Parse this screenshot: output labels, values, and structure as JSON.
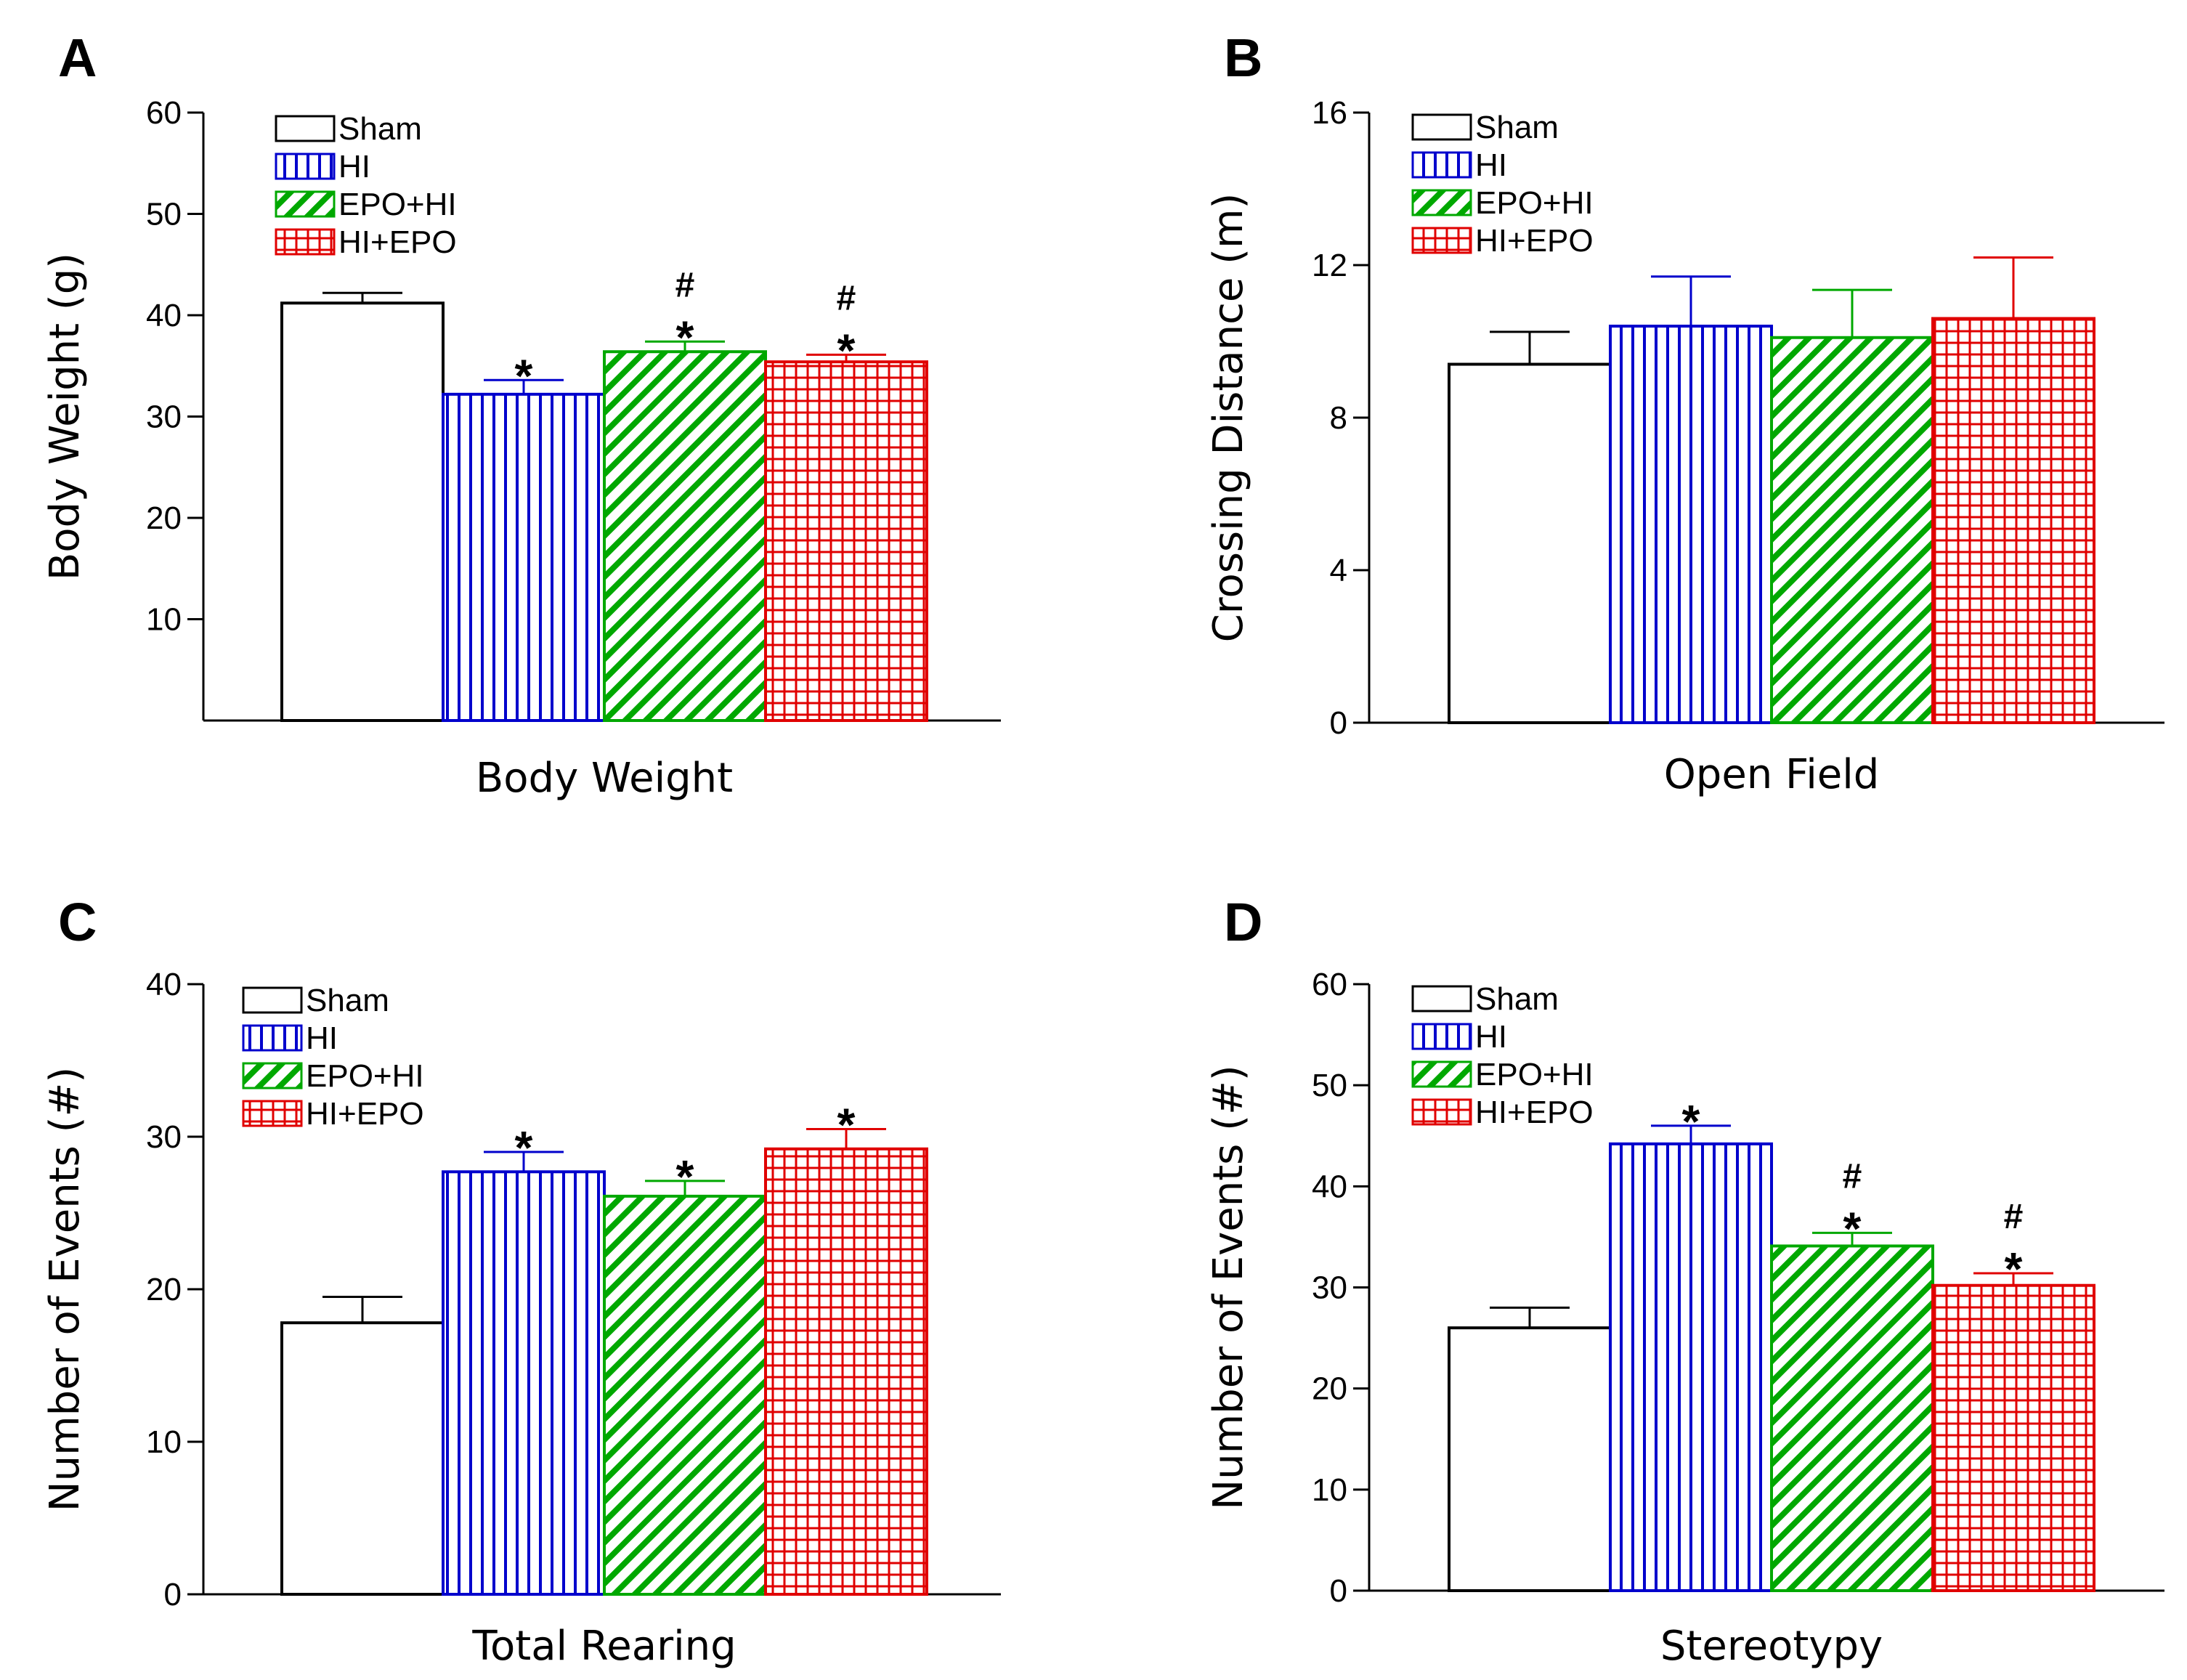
{
  "figure": {
    "series_styles": [
      {
        "name": "Sham",
        "color": "#000000",
        "pattern": "none"
      },
      {
        "name": "HI",
        "color": "#0000CC",
        "pattern": "vertical-lines"
      },
      {
        "name": "EPO+HI",
        "color": "#00A800",
        "pattern": "diagonal-lines"
      },
      {
        "name": "HI+EPO",
        "color": "#E00000",
        "pattern": "grid"
      }
    ]
  },
  "chart_data": [
    {
      "panel": "A",
      "type": "bar",
      "xlabel": "Body Weight",
      "ylabel": "Body Weight (g)",
      "ylim": [
        0,
        60
      ],
      "yticks": [
        10,
        20,
        30,
        40,
        50,
        60
      ],
      "legend": "top-left",
      "series": [
        {
          "name": "Sham",
          "value": 41.2,
          "error": 1.0,
          "annotations": []
        },
        {
          "name": "HI",
          "value": 32.2,
          "error": 1.4,
          "annotations": [
            "*"
          ]
        },
        {
          "name": "EPO+HI",
          "value": 36.4,
          "error": 1.0,
          "annotations": [
            "*",
            "#"
          ]
        },
        {
          "name": "HI+EPO",
          "value": 35.4,
          "error": 0.7,
          "annotations": [
            "*",
            "#"
          ]
        }
      ]
    },
    {
      "panel": "B",
      "type": "bar",
      "xlabel": "Open Field",
      "ylabel": "Crossing Distance (m)",
      "ylim": [
        0,
        16
      ],
      "yticks": [
        0,
        4,
        8,
        12,
        16
      ],
      "legend": "top-left",
      "series": [
        {
          "name": "Sham",
          "value": 9.4,
          "error": 0.85,
          "annotations": []
        },
        {
          "name": "HI",
          "value": 10.4,
          "error": 1.3,
          "annotations": []
        },
        {
          "name": "EPO+HI",
          "value": 10.1,
          "error": 1.25,
          "annotations": []
        },
        {
          "name": "HI+EPO",
          "value": 10.6,
          "error": 1.6,
          "annotations": []
        }
      ]
    },
    {
      "panel": "C",
      "type": "bar",
      "xlabel": "Total Rearing",
      "ylabel": "Number of Events (#)",
      "ylim": [
        0,
        40
      ],
      "yticks": [
        0,
        10,
        20,
        30,
        40
      ],
      "legend": "top-left",
      "series": [
        {
          "name": "Sham",
          "value": 17.8,
          "error": 1.7,
          "annotations": []
        },
        {
          "name": "HI",
          "value": 27.7,
          "error": 1.3,
          "annotations": [
            "*"
          ]
        },
        {
          "name": "EPO+HI",
          "value": 26.1,
          "error": 1.0,
          "annotations": [
            "*"
          ]
        },
        {
          "name": "HI+EPO",
          "value": 29.2,
          "error": 1.3,
          "annotations": [
            "*"
          ]
        }
      ]
    },
    {
      "panel": "D",
      "type": "bar",
      "xlabel": "Stereotypy",
      "ylabel": "Number of Events (#)",
      "ylim": [
        0,
        60
      ],
      "yticks": [
        0,
        10,
        20,
        30,
        40,
        50,
        60
      ],
      "legend": "top-left",
      "series": [
        {
          "name": "Sham",
          "value": 26.0,
          "error": 2.0,
          "annotations": []
        },
        {
          "name": "HI",
          "value": 44.2,
          "error": 1.8,
          "annotations": [
            "*"
          ]
        },
        {
          "name": "EPO+HI",
          "value": 34.1,
          "error": 1.3,
          "annotations": [
            "*",
            "#"
          ]
        },
        {
          "name": "HI+EPO",
          "value": 30.2,
          "error": 1.2,
          "annotations": [
            "*",
            "#"
          ]
        }
      ]
    }
  ]
}
